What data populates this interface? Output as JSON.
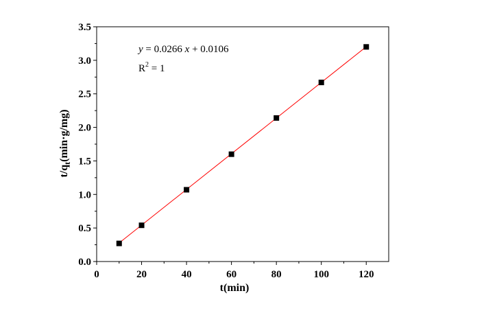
{
  "chart_data": {
    "type": "scatter",
    "xlabel": "t(min)",
    "ylabel": "t/q",
    "ylabel_sub": "t",
    "ylabel_unit": "(min·g/mg)",
    "xlim": [
      0,
      130
    ],
    "ylim": [
      0,
      3.5
    ],
    "x_ticks": [
      0,
      20,
      40,
      60,
      80,
      100,
      120
    ],
    "y_ticks": [
      0.0,
      0.5,
      1.0,
      1.5,
      2.0,
      2.5,
      3.0,
      3.5
    ],
    "y_tick_labels": [
      "0.0",
      "0.5",
      "1.0",
      "1.5",
      "2.0",
      "2.5",
      "3.0",
      "3.5"
    ],
    "grid": false,
    "series": [
      {
        "x": [
          10,
          20,
          40,
          60,
          80,
          100,
          120
        ],
        "y": [
          0.27,
          0.54,
          1.07,
          1.6,
          2.14,
          2.67,
          3.2
        ],
        "marker": "square",
        "color": "#000000"
      }
    ],
    "fit": {
      "slope": 0.0266,
      "intercept": 0.0106,
      "x_range": [
        10,
        120
      ],
      "color": "#ff0000",
      "equation_parts": {
        "y": "y",
        "eq_mid": " = 0.0266 ",
        "x": "x",
        "eq_end": " + 0.0106"
      },
      "r2_label": "R",
      "r2_sup": "2",
      "r2_value": " = 1"
    }
  }
}
